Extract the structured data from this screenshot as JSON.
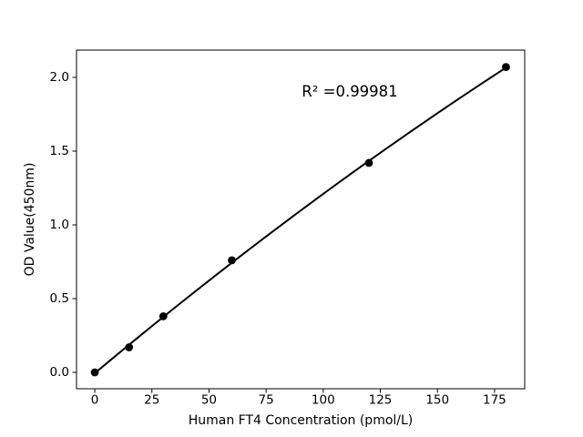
{
  "chart_data": {
    "type": "scatter",
    "title": "",
    "xlabel": "Human FT4 Concentration (pmol/L)",
    "ylabel": "OD Value(450nm)",
    "annotation": "R² =0.99981",
    "x": [
      0,
      15,
      30,
      60,
      120,
      180
    ],
    "y": [
      0.0,
      0.17,
      0.38,
      0.76,
      1.42,
      2.07
    ],
    "fit": "quadratic",
    "xticks": [
      0,
      25,
      50,
      75,
      100,
      125,
      150,
      175
    ],
    "xtick_labels": [
      "0",
      "25",
      "50",
      "75",
      "100",
      "125",
      "150",
      "175"
    ],
    "yticks": [
      0.0,
      0.5,
      1.0,
      1.5,
      2.0
    ],
    "ytick_labels": [
      "0.0",
      "0.5",
      "1.0",
      "1.5",
      "2.0"
    ],
    "xlim": [
      -8,
      188.2
    ],
    "ylim": [
      -0.111,
      2.185
    ],
    "grid": false,
    "legend": "none",
    "marker_color": "#000000",
    "line_color": "#000000",
    "background_color": "#ffffff"
  }
}
